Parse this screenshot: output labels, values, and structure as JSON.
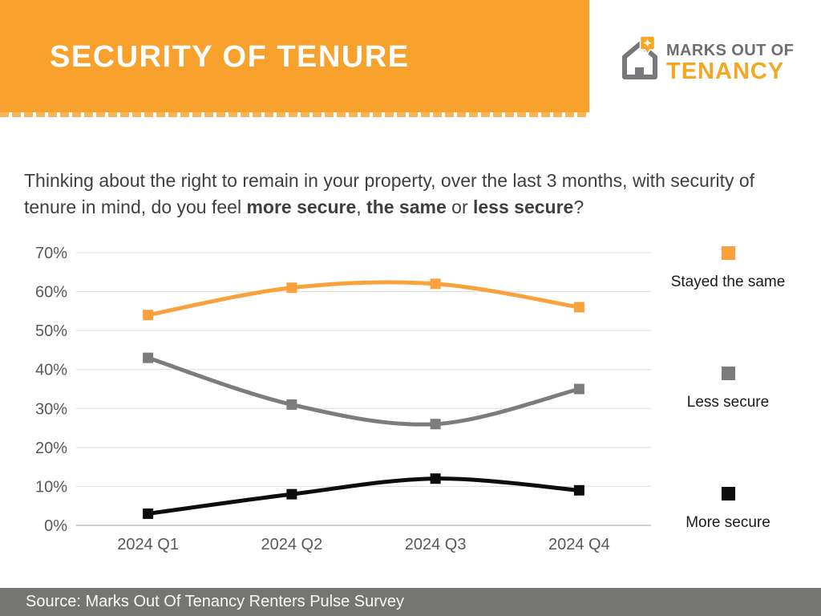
{
  "header": {
    "title": "SECURITY OF TENURE",
    "banner_color": "#F8A12C"
  },
  "logo": {
    "line1": "MARKS OUT OF",
    "line2": "TENANCY",
    "icon": "house-with-location-pin-icon",
    "gray": "#6D6E71",
    "orange": "#F5A623"
  },
  "question": {
    "segments": [
      {
        "text": "Thinking about the right to remain in your property, over the last 3 months, with security of"
      },
      {
        "text": "tenure in mind, do you feel "
      },
      {
        "text": "more secure"
      },
      {
        "text": ", "
      },
      {
        "text": "the same"
      },
      {
        "text": " or "
      },
      {
        "text": "less secure"
      },
      {
        "text": "?"
      }
    ]
  },
  "chart_data": {
    "type": "line",
    "categories": [
      "2024 Q1",
      "2024 Q2",
      "2024 Q3",
      "2024 Q4"
    ],
    "series": [
      {
        "name": "Stayed the same",
        "color": "#F9A13C",
        "values": [
          54,
          61,
          62,
          56
        ]
      },
      {
        "name": "Less secure",
        "color": "#7C7C7C",
        "values": [
          43,
          31,
          26,
          35
        ]
      },
      {
        "name": "More secure",
        "color": "#0D0D0D",
        "values": [
          3,
          8,
          12,
          9
        ]
      }
    ],
    "title": "",
    "xlabel": "",
    "ylabel": "",
    "ylim": [
      0,
      70
    ],
    "ytick_step": 10,
    "ytick_format": "percent",
    "grid": true,
    "gridline_color": "#DCDCDC",
    "axis_line_color": "#BFBFBF",
    "tick_label_color": "#595959",
    "legend_position": "right",
    "marker": "square",
    "smooth": true
  },
  "footer": {
    "text": "Source: Marks Out Of Tenancy Renters Pulse Survey",
    "bg": "#757573"
  }
}
